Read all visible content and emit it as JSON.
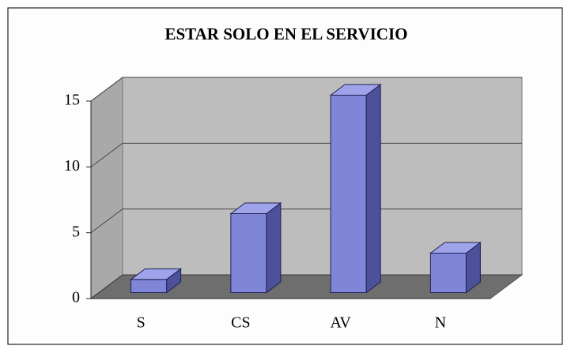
{
  "chart_data": {
    "type": "bar",
    "title": "ESTAR SOLO EN EL SERVICIO",
    "categories": [
      "S",
      "CS",
      "AV",
      "N"
    ],
    "values": [
      1,
      6,
      15,
      3
    ],
    "color": "#7f86d8",
    "ylim": [
      0,
      15
    ],
    "yticks": [
      0,
      5,
      10,
      15
    ],
    "grid": true
  }
}
